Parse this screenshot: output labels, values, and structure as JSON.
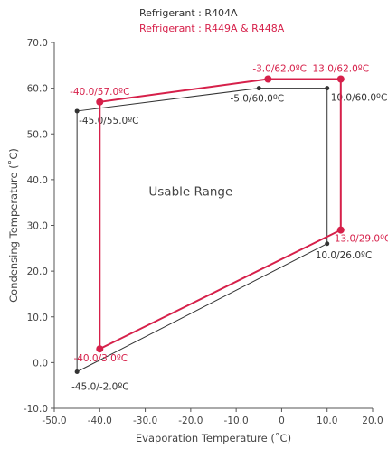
{
  "chart_data": {
    "type": "scatter",
    "xlabel": "Evaporation Temperature (˚C)",
    "ylabel": "Condensing Temperature (˚C)",
    "xlim": [
      -50,
      20
    ],
    "ylim": [
      -10,
      70
    ],
    "xticks": [
      -50,
      -40,
      -30,
      -20,
      -10,
      0,
      10,
      20
    ],
    "yticks": [
      -10,
      0,
      10,
      20,
      30,
      40,
      50,
      60,
      70
    ],
    "xtick_labels": [
      "-50.0",
      "-40.0",
      "-30.0",
      "-20.0",
      "-10.0",
      "0",
      "10.0",
      "20.0"
    ],
    "ytick_labels": [
      "-10.0",
      "0.0",
      "10.0",
      "20.0",
      "30.0",
      "40.0",
      "50.0",
      "60.0",
      "70.0"
    ],
    "annotation": "Usable Range",
    "grid": false,
    "legend_position": "top-center",
    "series": [
      {
        "name": "Refrigerant : R404A",
        "color": "#333333",
        "closed": true,
        "points": [
          {
            "x": -45,
            "y": 55,
            "label": "-45.0/55.0ºC"
          },
          {
            "x": -5,
            "y": 60,
            "label": "-5.0/60.0ºC"
          },
          {
            "x": 10,
            "y": 60,
            "label": "10.0/60.0ºC"
          },
          {
            "x": 10,
            "y": 26,
            "label": "10.0/26.0ºC"
          },
          {
            "x": -45,
            "y": -2,
            "label": "-45.0/-2.0ºC"
          }
        ]
      },
      {
        "name": "Refrigerant : R449A  & R448A",
        "color": "#d6204a",
        "closed": true,
        "points": [
          {
            "x": -40,
            "y": 57,
            "label": "-40.0/57.0ºC"
          },
          {
            "x": -3,
            "y": 62,
            "label": "-3.0/62.0ºC"
          },
          {
            "x": 13,
            "y": 62,
            "label": "13.0/62.0ºC"
          },
          {
            "x": 13,
            "y": 29,
            "label": "13.0/29.0ºC"
          },
          {
            "x": -40,
            "y": 3,
            "label": "-40.0/3.0ºC"
          }
        ]
      }
    ]
  }
}
